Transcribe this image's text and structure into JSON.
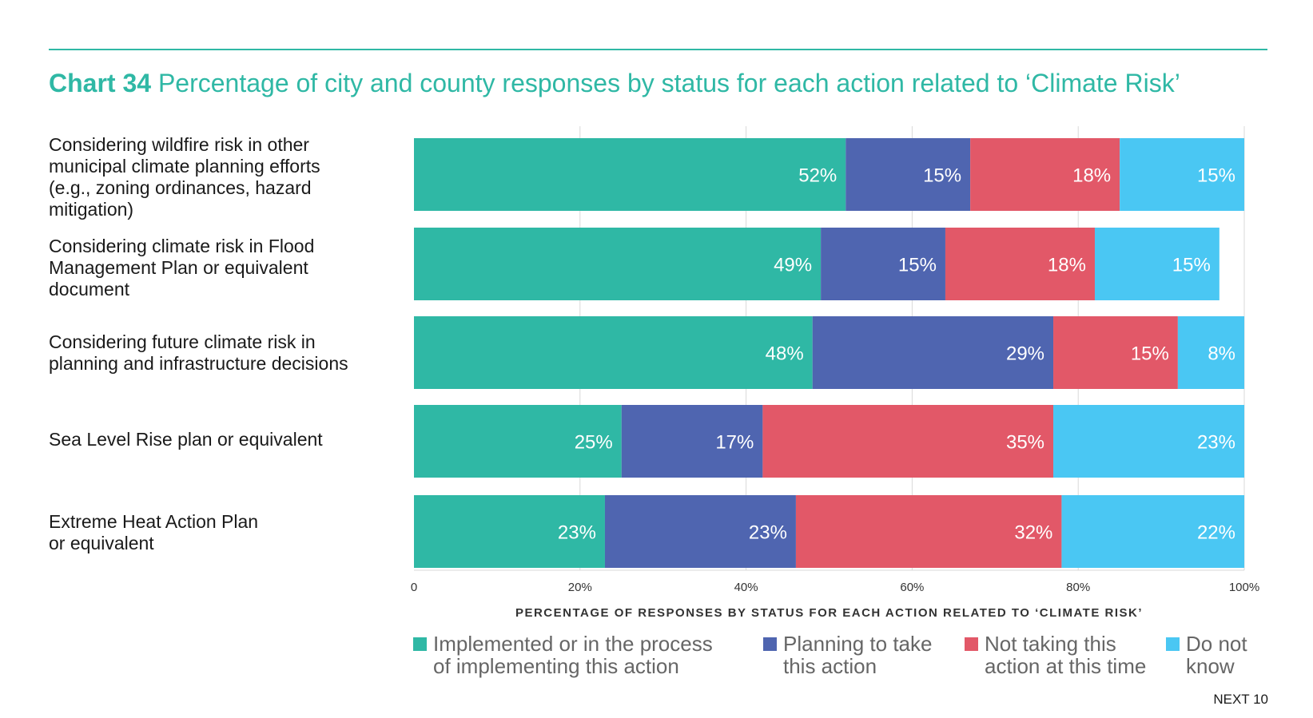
{
  "title": {
    "number": "Chart 34",
    "text": "Percentage of city and county responses by status for each action related to ‘Climate Risk’"
  },
  "footer": "NEXT 10",
  "colors": {
    "accent": "#2fb8a5",
    "implemented": "#2fb8a5",
    "planning": "#4f65b0",
    "not_taking": "#e25868",
    "do_not_know": "#4ac7f3"
  },
  "chart_data": {
    "type": "bar",
    "orientation": "horizontal",
    "stacked": true,
    "categories": [
      "Considering wildfire risk in other municipal climate planning efforts (e.g., zoning ordinances, hazard mitigation)",
      "Considering climate risk in Flood Management Plan or equivalent document",
      "Considering future climate risk in planning and infrastructure decisions",
      "Sea Level Rise plan or equivalent",
      "Extreme Heat Action Plan or equivalent"
    ],
    "category_lines": [
      [
        "Considering wildfire risk in other",
        "municipal climate planning efforts",
        "(e.g., zoning ordinances, hazard",
        "mitigation)"
      ],
      [
        "Considering climate risk in Flood",
        "Management Plan or equivalent",
        "document"
      ],
      [
        "Considering future climate risk in",
        "planning and infrastructure decisions"
      ],
      [
        "Sea Level Rise plan or equivalent"
      ],
      [
        "Extreme Heat Action Plan",
        "or equivalent"
      ]
    ],
    "series": [
      {
        "name": "Implemented or in the process of implementing this action",
        "legend_lines": [
          "Implemented or in the process",
          "of implementing this action"
        ],
        "values": [
          52,
          49,
          48,
          25,
          23
        ],
        "labels": [
          "52%",
          "49%",
          "48%",
          "25%",
          "23%"
        ]
      },
      {
        "name": "Planning to take this action",
        "legend_lines": [
          "Planning to take",
          "this action"
        ],
        "values": [
          15,
          15,
          29,
          17,
          23
        ],
        "labels": [
          "15%",
          "15%",
          "29%",
          "17%",
          "23%"
        ]
      },
      {
        "name": "Not taking this action at this time",
        "legend_lines": [
          "Not taking this",
          "action at this time"
        ],
        "values": [
          18,
          18,
          15,
          35,
          32
        ],
        "labels": [
          "18%",
          "18%",
          "15%",
          "35%",
          "32%"
        ]
      },
      {
        "name": "Do not know",
        "legend_lines": [
          "Do not",
          "know"
        ],
        "values": [
          15,
          15,
          8,
          23,
          22
        ],
        "labels": [
          "15%",
          "15%",
          "8%",
          "23%",
          "22%"
        ]
      }
    ],
    "xlabel": "PERCENTAGE OF RESPONSES BY STATUS FOR EACH ACTION RELATED TO ‘CLIMATE RISK’",
    "xlim": [
      0,
      100
    ],
    "xticks": [
      0,
      20,
      40,
      60,
      80,
      100
    ],
    "xtick_labels": [
      "0",
      "20%",
      "40%",
      "60%",
      "80%",
      "100%"
    ],
    "grid": true,
    "legend_position": "bottom"
  }
}
